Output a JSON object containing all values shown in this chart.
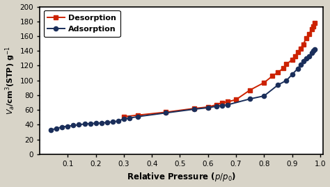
{
  "adsorption_x": [
    0.04,
    0.06,
    0.08,
    0.1,
    0.12,
    0.14,
    0.16,
    0.18,
    0.2,
    0.22,
    0.24,
    0.26,
    0.28,
    0.3,
    0.32,
    0.35,
    0.45,
    0.55,
    0.6,
    0.63,
    0.65,
    0.67,
    0.75,
    0.8,
    0.85,
    0.88,
    0.9,
    0.92,
    0.93,
    0.94,
    0.95,
    0.96,
    0.97,
    0.975,
    0.98
  ],
  "adsorption_y": [
    33,
    35,
    37,
    38,
    39,
    40,
    41,
    41.5,
    42,
    42.5,
    43,
    44,
    45,
    48,
    49,
    51,
    56,
    61,
    63,
    65,
    66,
    67,
    75,
    79,
    94,
    100,
    108,
    116,
    121,
    126,
    130,
    133,
    137,
    140,
    142
  ],
  "desorption_x": [
    0.3,
    0.35,
    0.45,
    0.55,
    0.6,
    0.63,
    0.65,
    0.67,
    0.7,
    0.75,
    0.8,
    0.83,
    0.85,
    0.87,
    0.88,
    0.9,
    0.91,
    0.92,
    0.93,
    0.94,
    0.95,
    0.96,
    0.97,
    0.975,
    0.98
  ],
  "desorption_y": [
    51,
    53,
    57,
    62,
    64,
    67,
    70,
    71,
    74,
    87,
    97,
    106,
    111,
    117,
    122,
    128,
    133,
    138,
    143,
    149,
    157,
    163,
    169,
    173,
    178
  ],
  "adsorption_color": "#1a2e5a",
  "desorption_color": "#cc2200",
  "xlabel": "Relative Pressure ($p/p_0$)",
  "ylabel": "$V_a$/cm$^3$(STP) g$^{-1}$",
  "xlim": [
    0,
    1.01
  ],
  "ylim": [
    0,
    200
  ],
  "yticks": [
    0,
    20,
    40,
    60,
    80,
    100,
    120,
    140,
    160,
    180,
    200
  ],
  "xticks": [
    0.1,
    0.2,
    0.3,
    0.4,
    0.5,
    0.6,
    0.7,
    0.8,
    0.9,
    1.0
  ],
  "legend_desorption": "Desorption",
  "legend_adsorption": "Adsorption",
  "bg_color": "#ffffff",
  "fig_bg_color": "#d8d4c8"
}
